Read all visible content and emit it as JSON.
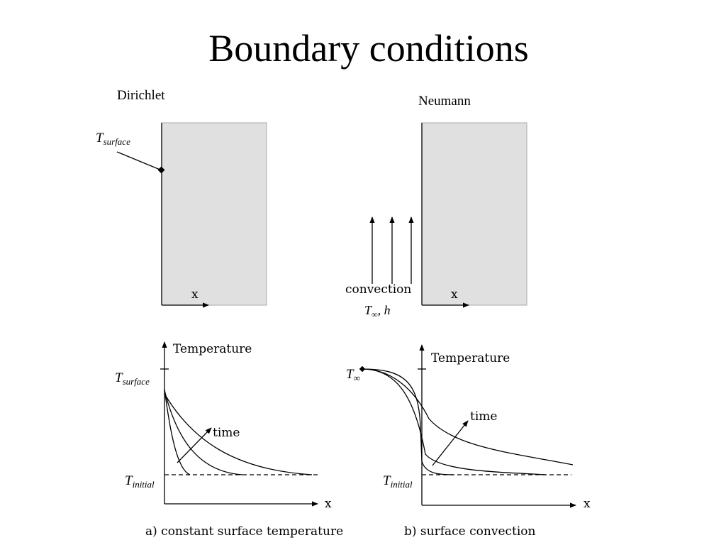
{
  "title": "Boundary conditions",
  "panels": [
    {
      "heading": "Dirichlet",
      "surface_label": {
        "symbol": "T",
        "subscript": "surface"
      },
      "axis_label": "x"
    },
    {
      "heading": "Neumann",
      "convection_label": "convection",
      "fluid_label": {
        "symbol": "T",
        "subscript": "∞",
        "suffix": ", h"
      },
      "axis_label": "x"
    }
  ],
  "plots": [
    {
      "y_label": "Temperature",
      "x_label": "x",
      "arrow_label": "time",
      "top_label": {
        "symbol": "T",
        "subscript": "surface"
      },
      "bottom_label": {
        "symbol": "T",
        "subscript": "initial"
      },
      "caption": "a) constant surface temperature"
    },
    {
      "y_label": "Temperature",
      "x_label": "x",
      "arrow_label": "time",
      "top_label": {
        "symbol": "T",
        "subscript": "∞"
      },
      "bottom_label": {
        "symbol": "T",
        "subscript": "initial"
      },
      "caption": "b) surface convection"
    }
  ]
}
